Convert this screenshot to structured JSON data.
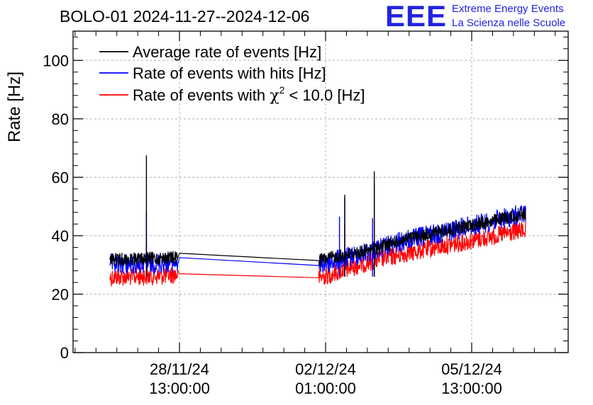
{
  "title": "BOLO-01 2024-11-27--2024-12-06",
  "logo": {
    "mark": "EEE",
    "line1": "Extreme Energy Events",
    "line2": "La Scienza nelle Scuole"
  },
  "colors": {
    "average": "#000000",
    "hits": "#0000ff",
    "chi2": "#ff0000",
    "logo": "#2323e0",
    "grid": "#b0b0b0"
  },
  "chart_data": {
    "type": "line",
    "title": "BOLO-01 2024-11-27--2024-12-06",
    "xlabel": "",
    "ylabel": "Rate [Hz]",
    "ylim": [
      0,
      110
    ],
    "y_ticks": [
      0,
      20,
      40,
      60,
      80,
      100
    ],
    "x_ticks": [
      {
        "line1": "28/11/24",
        "line2": "13:00:00"
      },
      {
        "line1": "02/12/24",
        "line2": "01:00:00"
      },
      {
        "line1": "05/12/24",
        "line2": "13:00:00"
      }
    ],
    "grid": true,
    "legend_position": "top-left",
    "legend": [
      {
        "label": "Average rate of events [Hz]",
        "color": "#000000"
      },
      {
        "label": "Rate of events with hits [Hz]",
        "color": "#0000ff"
      },
      {
        "label_prefix": "Rate of events with ",
        "label_chi": "χ",
        "label_sup": "2",
        "label_suffix": " < 10.0 [Hz]",
        "color": "#ff0000"
      }
    ],
    "series": [
      {
        "name": "Average rate of events [Hz]",
        "color": "#000000",
        "noise": 1.0,
        "points": [
          [
            "2024-11-26 21:00",
            31.8
          ],
          [
            "2024-11-28 02:00",
            32.3
          ],
          [
            "2024-11-28 12:00",
            32.6
          ],
          [
            "2024-11-28 13:00",
            34.0
          ],
          [
            "2024-12-01 21:00",
            31.5
          ],
          [
            "2024-12-02 00:00",
            32.0
          ],
          [
            "2024-12-03 02:00",
            35.0
          ],
          [
            "2024-12-04 00:00",
            39.0
          ],
          [
            "2024-12-06 20:00",
            47.5
          ]
        ],
        "gaps_after": [
          2
        ],
        "spikes": [
          [
            "2024-11-27 18:00",
            67.5
          ],
          [
            "2024-12-02 12:00",
            54.0
          ],
          [
            "2024-12-03 05:00",
            62.0
          ]
        ]
      },
      {
        "name": "Rate of events with hits [Hz]",
        "color": "#0000ff",
        "noise": 1.6,
        "points": [
          [
            "2024-11-26 21:00",
            30.2
          ],
          [
            "2024-11-28 02:00",
            30.6
          ],
          [
            "2024-11-28 12:00",
            31.0
          ],
          [
            "2024-11-28 13:00",
            32.5
          ],
          [
            "2024-12-01 21:00",
            29.8
          ],
          [
            "2024-12-02 00:00",
            30.4
          ],
          [
            "2024-12-03 02:00",
            34.5
          ],
          [
            "2024-12-04 00:00",
            38.5
          ],
          [
            "2024-12-06 20:00",
            47.5
          ]
        ],
        "gaps_after": [
          2
        ],
        "spikes": [
          [
            "2024-11-27 18:00",
            48.5
          ],
          [
            "2024-12-02 09:00",
            46.5
          ],
          [
            "2024-12-02 12:00",
            53.0
          ],
          [
            "2024-12-03 04:00",
            46.0
          ],
          [
            "2024-12-03 05:00",
            58.0
          ]
        ]
      },
      {
        "name": "Rate of events with χ2 < 10.0 [Hz]",
        "color": "#ff0000",
        "noise": 1.4,
        "points": [
          [
            "2024-11-26 21:00",
            25.8
          ],
          [
            "2024-11-28 02:00",
            26.2
          ],
          [
            "2024-11-28 12:00",
            26.8
          ],
          [
            "2024-11-28 13:00",
            27.0
          ],
          [
            "2024-12-01 21:00",
            25.6
          ],
          [
            "2024-12-02 00:00",
            26.0
          ],
          [
            "2024-12-03 02:00",
            31.0
          ],
          [
            "2024-12-04 00:00",
            34.0
          ],
          [
            "2024-12-06 20:00",
            42.0
          ]
        ],
        "gaps_after": [
          2
        ],
        "spikes": [
          [
            "2024-11-27 18:00",
            37.0
          ],
          [
            "2024-12-02 12:00",
            44.0
          ],
          [
            "2024-12-03 05:00",
            44.0
          ]
        ]
      }
    ]
  }
}
